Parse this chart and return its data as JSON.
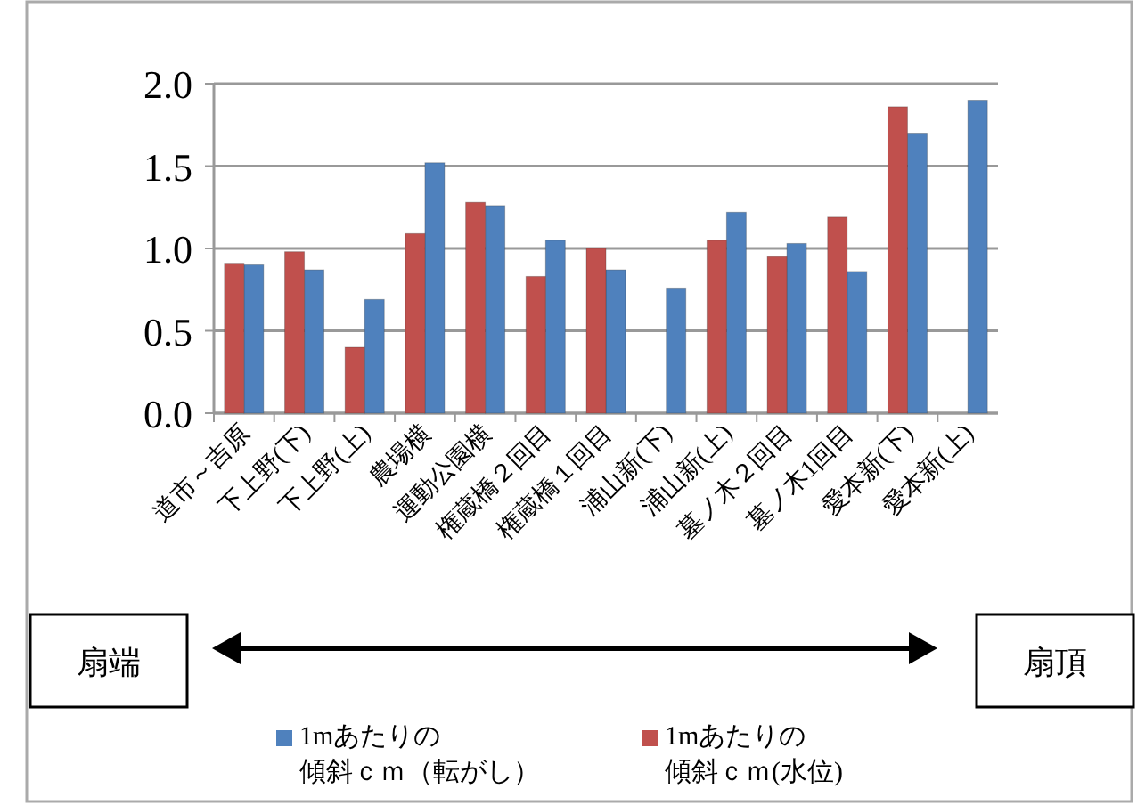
{
  "chart_data": {
    "type": "bar",
    "categories": [
      "道市～吉原",
      "下上野(下)",
      "下上野(上)",
      "農場横",
      "運動公園横",
      "権蔵橋２回目",
      "権蔵橋１回目",
      "浦山新(下)",
      "浦山新(上)",
      "墓ノ木２回目",
      "墓ノ木1回目",
      "愛本新(下)",
      "愛本新(上)"
    ],
    "series": [
      {
        "name": "1mあたりの傾斜ｃｍ（転がし）",
        "color": "#4f81bd",
        "values": [
          0.9,
          0.87,
          0.69,
          1.52,
          1.26,
          1.05,
          0.87,
          0.76,
          1.22,
          1.03,
          0.86,
          1.7,
          1.9
        ]
      },
      {
        "name": "1mあたりの傾斜ｃｍ(水位)",
        "color": "#c0504d",
        "values": [
          0.91,
          0.98,
          0.4,
          1.09,
          1.28,
          0.83,
          1.0,
          null,
          1.05,
          0.95,
          1.19,
          1.86,
          null
        ]
      }
    ],
    "ylim": [
      0,
      2
    ],
    "yticks": [
      {
        "value": 0,
        "label": "0.0"
      },
      {
        "value": 0.5,
        "label": "0.5"
      },
      {
        "value": 1,
        "label": "1.0"
      },
      {
        "value": 1.5,
        "label": "1.5"
      },
      {
        "value": 2,
        "label": "2.0"
      }
    ],
    "grid": "y",
    "legend": "bottom",
    "annotations": [
      "扇端",
      "扇頂"
    ]
  }
}
